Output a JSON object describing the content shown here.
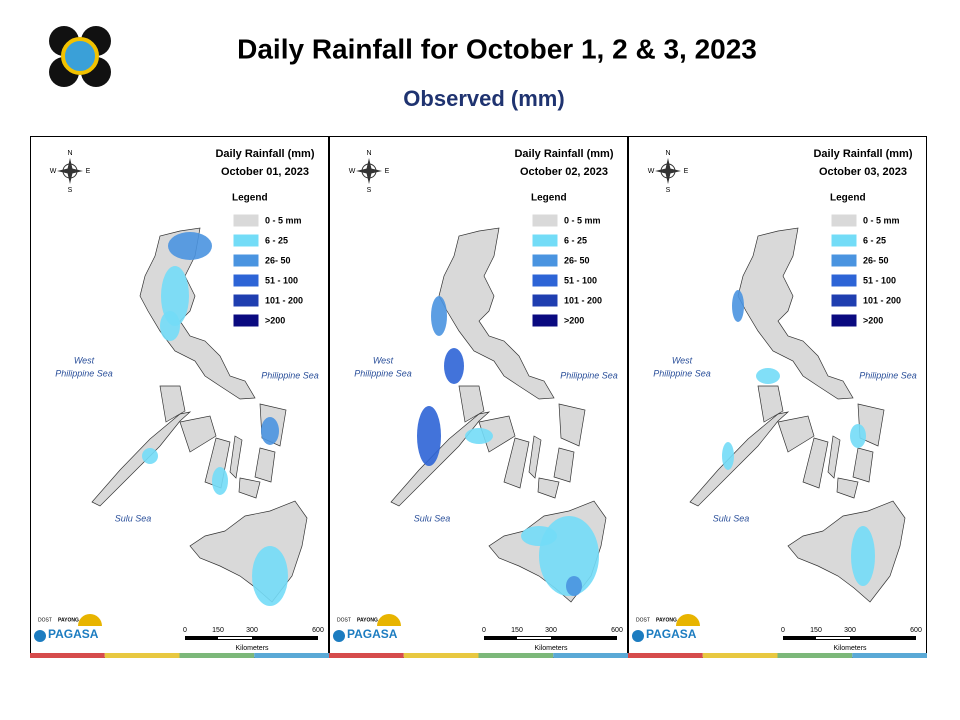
{
  "header": {
    "title": "Daily Rainfall for October 1, 2 & 3, 2023",
    "subtitle": "Observed (mm)"
  },
  "maps": [
    {
      "heading": "Daily Rainfall (mm)",
      "date": "October 01, 2023"
    },
    {
      "heading": "Daily Rainfall (mm)",
      "date": "October 02, 2023"
    },
    {
      "heading": "Daily Rainfall (mm)",
      "date": "October 03, 2023"
    }
  ],
  "legend": {
    "title": "Legend",
    "items": [
      {
        "label": "0 - 5 mm",
        "color": "#d9d9d9"
      },
      {
        "label": "6 - 25",
        "color": "#73dcf7"
      },
      {
        "label": "26- 50",
        "color": "#4a94e0"
      },
      {
        "label": "51 - 100",
        "color": "#2d64d6"
      },
      {
        "label": "101 - 200",
        "color": "#1f3eb0"
      },
      {
        "label": ">200",
        "color": "#0a0a80"
      }
    ]
  },
  "seas": {
    "west": [
      "West",
      "Philippine Sea"
    ],
    "east": "Philippine Sea",
    "sulu": "Sulu Sea"
  },
  "compass": {
    "n": "N",
    "e": "E",
    "s": "S",
    "w": "W"
  },
  "scale": {
    "ticks": [
      "0",
      "150",
      "300",
      "600"
    ],
    "unit": "Kilometers"
  },
  "logo": {
    "dost": "DOST",
    "payong": "PAYONG",
    "name": "PAGASA"
  }
}
